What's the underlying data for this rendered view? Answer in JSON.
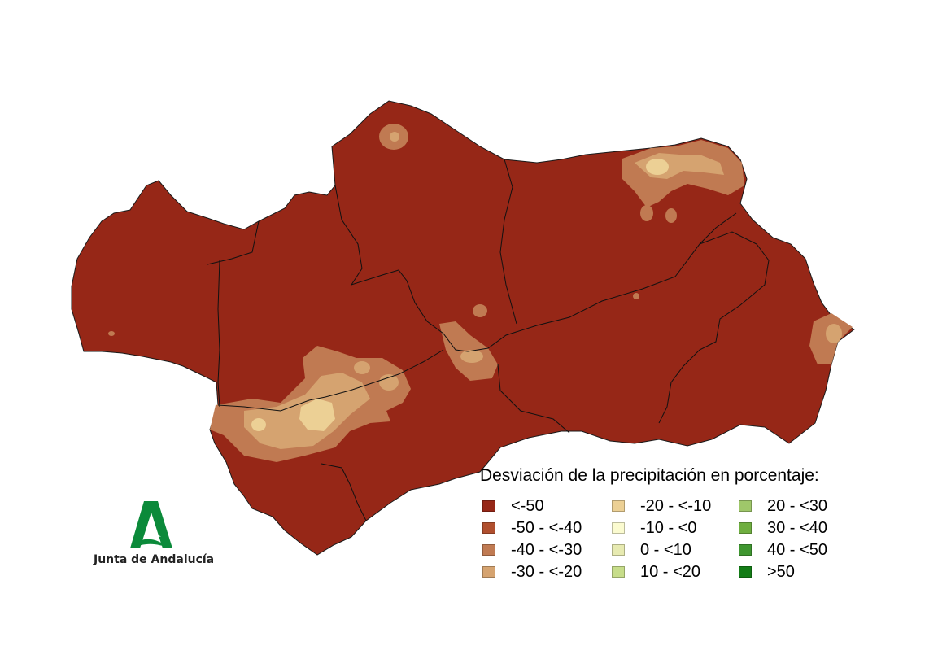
{
  "legend": {
    "title": "Desviación de la precipitación en porcentaje:",
    "items": [
      {
        "label": "<-50",
        "color": "#962717"
      },
      {
        "label": "-50 - <-40",
        "color": "#b04f2e"
      },
      {
        "label": "-40 - <-30",
        "color": "#c07a52"
      },
      {
        "label": "-30 - <-20",
        "color": "#d5a370"
      },
      {
        "label": "-20 - <-10",
        "color": "#ecd095"
      },
      {
        "label": "-10 - <0",
        "color": "#fbfbd0"
      },
      {
        "label": "0 - <10",
        "color": "#e7eab1"
      },
      {
        "label": "10 - <20",
        "color": "#c7dd8a"
      },
      {
        "label": "20 - <30",
        "color": "#9fc76a"
      },
      {
        "label": "30 - <40",
        "color": "#6fae40"
      },
      {
        "label": "40 - <50",
        "color": "#3f9630"
      },
      {
        "label": ">50",
        "color": "#137c16"
      }
    ]
  },
  "logo": {
    "text": "Junta de Andalucía",
    "color": "#0b8a3a"
  },
  "map": {
    "base_class": "<-50",
    "region": "Andalucía"
  }
}
